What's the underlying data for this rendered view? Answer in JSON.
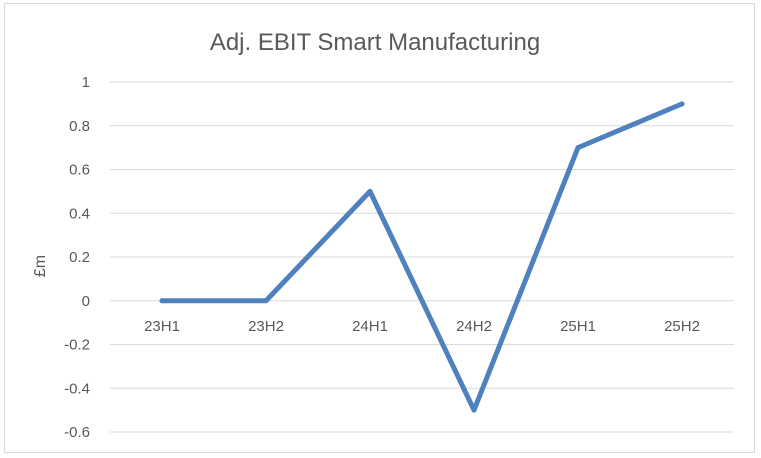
{
  "chart_data": {
    "type": "line",
    "title": "Adj. EBIT Smart Manufacturing",
    "xlabel": "",
    "ylabel": "£m",
    "categories": [
      "23H1",
      "23H2",
      "24H1",
      "24H2",
      "25H1",
      "25H2"
    ],
    "series": [
      {
        "values": [
          0,
          0,
          0.5,
          -0.5,
          0.7,
          0.9
        ],
        "color": "#4f81bd"
      }
    ],
    "ylim": [
      -0.6,
      1
    ],
    "yticks": [
      1,
      0.8,
      0.6,
      0.4,
      0.2,
      0,
      -0.2,
      -0.4,
      -0.6
    ],
    "grid": true,
    "legend": "none",
    "colors": {
      "gridline": "#d9d9d9",
      "text": "#595959",
      "border": "#d9d9d9"
    }
  }
}
